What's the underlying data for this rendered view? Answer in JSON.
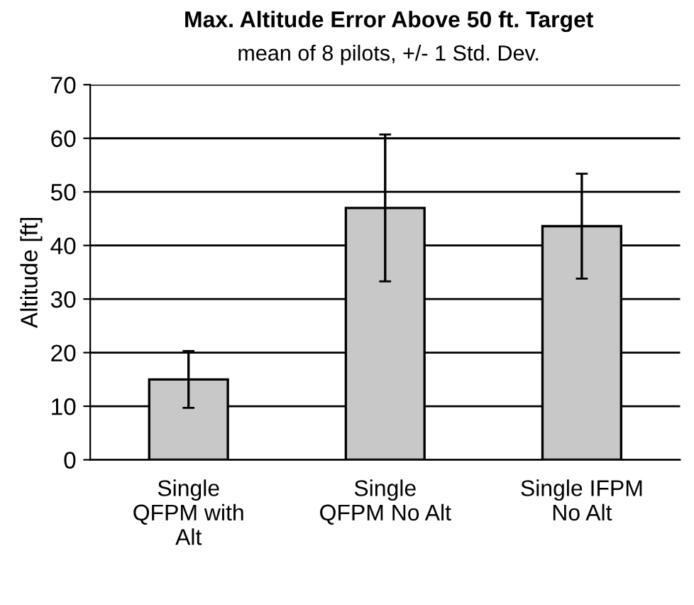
{
  "chart_data": {
    "type": "bar",
    "title": "Max. Altitude Error Above 50 ft. Target",
    "subtitle": "mean of 8 pilots, +/- 1 Std. Dev.",
    "ylabel": "Altitude [ft]",
    "categories": [
      "Single\nQFPM with\nAlt",
      "Single\nQFPM No Alt",
      "Single IFPM\nNo Alt"
    ],
    "values": [
      15,
      47,
      43.6
    ],
    "errors": [
      5.3,
      13.7,
      9.8
    ],
    "color": "#c8c8c8",
    "ylim": [
      0,
      70
    ],
    "yticks": [
      0,
      10,
      20,
      30,
      40,
      50,
      60,
      70
    ],
    "grid": "y"
  }
}
